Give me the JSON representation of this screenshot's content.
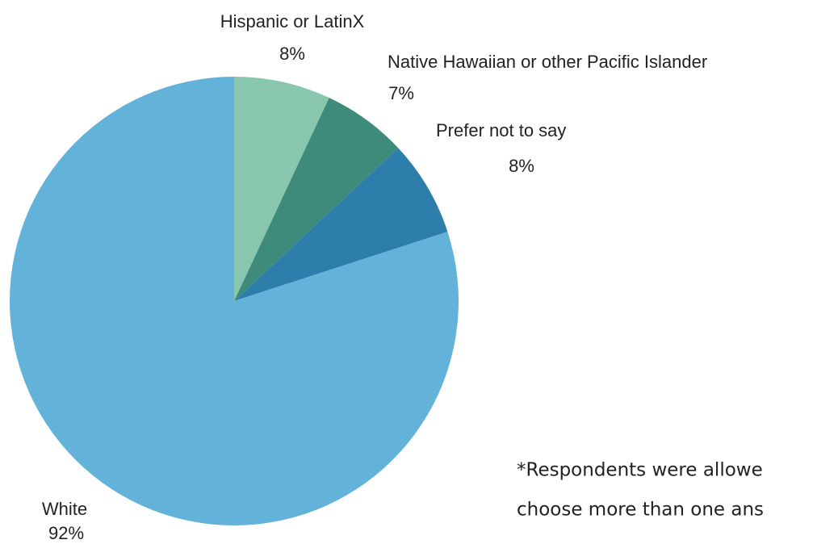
{
  "chart_data": {
    "type": "pie",
    "categories": [
      "Hispanic or LatinX",
      "Native Hawaiian or other Pacific Islander",
      "Prefer not to say",
      "White"
    ],
    "values": [
      8,
      7,
      8,
      92
    ],
    "value_labels": [
      "8%",
      "7%",
      "8%",
      "92%"
    ],
    "colors": [
      "#88c6ae",
      "#3e8b7c",
      "#2e7eab",
      "#63b2da"
    ],
    "annotations": [
      "*Respondents were allowe",
      "choose more than one ans"
    ]
  }
}
